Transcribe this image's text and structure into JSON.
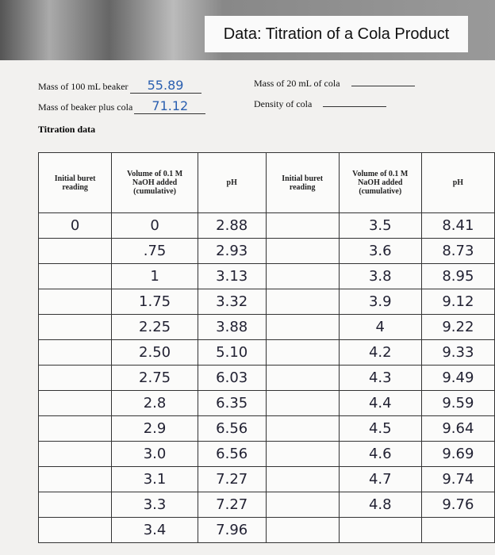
{
  "header": {
    "title": "Data: Titration of a Cola Product"
  },
  "fields": [
    {
      "label": "Mass of 100 mL beaker",
      "value": "55.89"
    },
    {
      "label": "Mass of beaker plus cola",
      "value": "71.12"
    },
    {
      "label": "Mass of 20 mL of cola"
    },
    {
      "label": "Density of cola"
    }
  ],
  "section": "Titration data",
  "table": {
    "headers": [
      "Initial buret reading",
      "Volume of 0.1 M NaOH added (cumulative)",
      "pH",
      "Initial buret reading",
      "Volume of 0.1 M NaOH added (cumulative)",
      "pH"
    ],
    "rows": [
      {
        "initial": "0",
        "volume": "0",
        "ph": "2.88",
        "volume2": "3.5",
        "ph2": "8.41"
      },
      {
        "volume": ".75",
        "ph": "2.93",
        "volume2": "3.6",
        "ph2": "8.73"
      },
      {
        "volume": "1",
        "ph": "3.13",
        "volume2": "3.8",
        "ph2": "8.95"
      },
      {
        "volume": "1.75",
        "ph": "3.32",
        "volume2": "3.9",
        "ph2": "9.12"
      },
      {
        "volume": "2.25",
        "ph": "3.88",
        "volume2": "4",
        "ph2": "9.22"
      },
      {
        "volume": "2.50",
        "ph": "5.10",
        "volume2": "4.2",
        "ph2": "9.33"
      },
      {
        "volume": "2.75",
        "ph": "6.03",
        "volume2": "4.3",
        "ph2": "9.49"
      },
      {
        "volume": "2.8",
        "ph": "6.35",
        "volume2": "4.4",
        "ph2": "9.59"
      },
      {
        "volume": "2.9",
        "ph": "6.56",
        "volume2": "4.5",
        "ph2": "9.64"
      },
      {
        "volume": "3.0",
        "ph": "6.56",
        "volume2": "4.6",
        "ph2": "9.69"
      },
      {
        "volume": "3.1",
        "ph": "7.27",
        "volume2": "4.7",
        "ph2": "9.74"
      },
      {
        "volume": "3.3",
        "ph": "7.27",
        "volume2": "4.8",
        "ph2": "9.76"
      },
      {
        "volume": "3.4",
        "ph": "7.96"
      }
    ]
  }
}
